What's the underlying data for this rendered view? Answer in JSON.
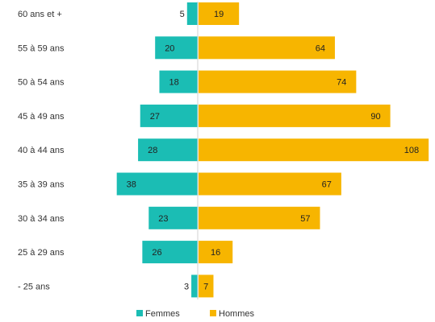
{
  "colors": {
    "femmes": "#1bbdb4",
    "hommes": "#f7b500",
    "axis": "#d0d0d0",
    "text": "#333333"
  },
  "chart_data": {
    "type": "bar",
    "orientation": "horizontal",
    "layout": "population-pyramid",
    "categories": [
      "60 ans et +",
      "55 à 59 ans",
      "50 à 54 ans",
      "45 à 49 ans",
      "40 à 44 ans",
      "35 à 39 ans",
      "30 à 34 ans",
      "25 à 29 ans",
      "- 25 ans"
    ],
    "series": [
      {
        "name": "Femmes",
        "values": [
          5,
          20,
          18,
          27,
          28,
          38,
          23,
          26,
          3
        ],
        "side": "left"
      },
      {
        "name": "Hommes",
        "values": [
          19,
          64,
          74,
          90,
          108,
          67,
          57,
          16,
          7
        ],
        "side": "right"
      }
    ],
    "legend_position": "bottom",
    "grid": false
  }
}
